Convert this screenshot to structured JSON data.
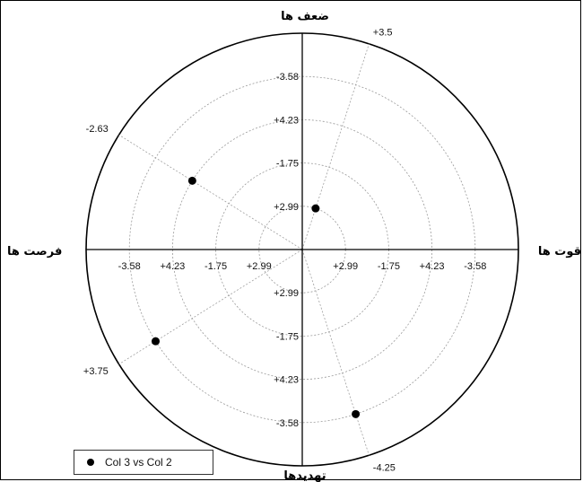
{
  "chart_data": {
    "type": "scatter",
    "subtype": "polar",
    "quadrant_labels": {
      "top": "ضعف ها",
      "bottom": "تهدیدها",
      "left": "فرصت ها",
      "right": "قوت ها"
    },
    "radial_ticks": [
      "+2.99",
      "-1.75",
      "+4.23",
      "-3.58"
    ],
    "ray_labels": [
      {
        "label": "+3.5",
        "angle_deg": 72
      },
      {
        "label": "-2.63",
        "angle_deg": 148
      },
      {
        "label": "+3.75",
        "angle_deg": 212
      },
      {
        "label": "-4.25",
        "angle_deg": 288
      }
    ],
    "series": [
      {
        "name": "Col 3 vs Col 2",
        "marker": "filled-circle",
        "color": "#000000",
        "points": [
          {
            "angle_deg": 72,
            "value": "+2.99"
          },
          {
            "angle_deg": 148,
            "value": "+4.23"
          },
          {
            "angle_deg": 212,
            "value": "-3.58"
          },
          {
            "angle_deg": 288,
            "value": "-3.58"
          }
        ]
      }
    ],
    "legend_position": "bottom-left",
    "grid": true
  }
}
